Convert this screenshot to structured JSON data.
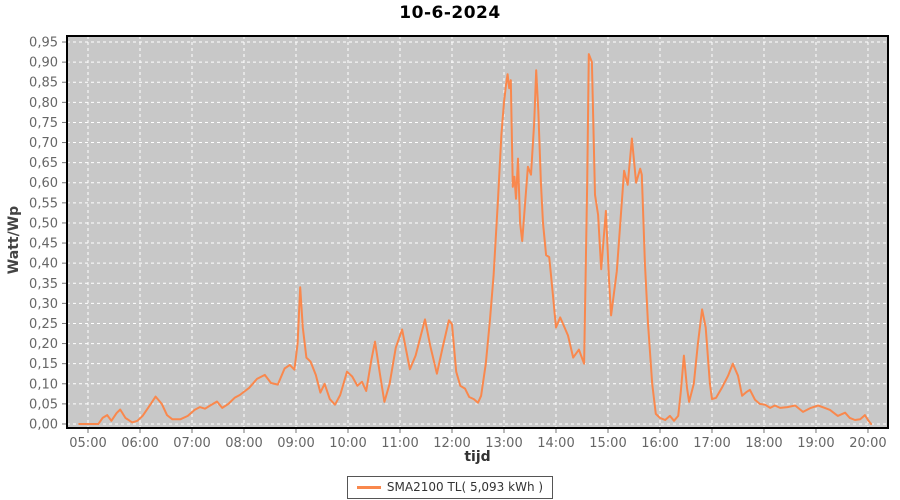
{
  "title": "10-6-2024",
  "legend": {
    "label": "SMA2100 TL( 5,093 kWh )",
    "swatch_color": "#f9884d"
  },
  "chart_data": {
    "type": "line",
    "title": "10-6-2024",
    "xlabel": "tijd",
    "ylabel": "Watt/Wp",
    "xlim": [
      4.596,
      20.385
    ],
    "ylim": [
      -0.01,
      0.965
    ],
    "grid": "on",
    "legend_position": "bottom-center",
    "colors": {
      "plot_background": "#c8c8c8",
      "grid_line": "#ffffff",
      "plot_border": "#000000",
      "tick_label": "#666666",
      "tick_mark": "#777777",
      "series_line": "#f9884d"
    },
    "x_tick_values": [
      5,
      6,
      7,
      8,
      9,
      10,
      11,
      12,
      13,
      14,
      15,
      16,
      17,
      18,
      19,
      20
    ],
    "x_tick_labels": [
      "05:00",
      "06:00",
      "07:00",
      "08:00",
      "09:00",
      "10:00",
      "11:00",
      "12:00",
      "13:00",
      "14:00",
      "15:00",
      "16:00",
      "17:00",
      "18:00",
      "19:00",
      "20:00"
    ],
    "y_tick_values": [
      0,
      0.05,
      0.1,
      0.15,
      0.2,
      0.25,
      0.3,
      0.35,
      0.4,
      0.45,
      0.5,
      0.55,
      0.6,
      0.65,
      0.7,
      0.75,
      0.8,
      0.85,
      0.9,
      0.95
    ],
    "y_tick_labels": [
      "0,00",
      "0,05",
      "0,10",
      "0,15",
      "0,20",
      "0,25",
      "0,30",
      "0,35",
      "0,40",
      "0,45",
      "0,50",
      "0,55",
      "0,60",
      "0,65",
      "0,70",
      "0,75",
      "0,80",
      "0,85",
      "0,90",
      "0,95"
    ],
    "series": [
      {
        "name": "SMA2100 TL( 5,093 kWh )",
        "color": "#f9884d",
        "points": [
          [
            4.83,
            0
          ],
          [
            5.0,
            0
          ],
          [
            5.2,
            0
          ],
          [
            5.28,
            0.015
          ],
          [
            5.37,
            0.022
          ],
          [
            5.45,
            0.008
          ],
          [
            5.55,
            0.027
          ],
          [
            5.62,
            0.036
          ],
          [
            5.72,
            0.015
          ],
          [
            5.85,
            0.004
          ],
          [
            5.95,
            0.008
          ],
          [
            6.05,
            0.02
          ],
          [
            6.18,
            0.045
          ],
          [
            6.3,
            0.068
          ],
          [
            6.42,
            0.05
          ],
          [
            6.52,
            0.022
          ],
          [
            6.62,
            0.012
          ],
          [
            6.78,
            0.012
          ],
          [
            6.92,
            0.02
          ],
          [
            7.05,
            0.035
          ],
          [
            7.15,
            0.042
          ],
          [
            7.25,
            0.038
          ],
          [
            7.35,
            0.046
          ],
          [
            7.48,
            0.056
          ],
          [
            7.58,
            0.04
          ],
          [
            7.7,
            0.05
          ],
          [
            7.82,
            0.065
          ],
          [
            7.92,
            0.072
          ],
          [
            8.1,
            0.09
          ],
          [
            8.25,
            0.112
          ],
          [
            8.4,
            0.122
          ],
          [
            8.52,
            0.102
          ],
          [
            8.65,
            0.098
          ],
          [
            8.78,
            0.138
          ],
          [
            8.88,
            0.147
          ],
          [
            8.97,
            0.135
          ],
          [
            9.03,
            0.2
          ],
          [
            9.08,
            0.34
          ],
          [
            9.13,
            0.24
          ],
          [
            9.2,
            0.165
          ],
          [
            9.28,
            0.155
          ],
          [
            9.38,
            0.122
          ],
          [
            9.47,
            0.078
          ],
          [
            9.55,
            0.1
          ],
          [
            9.65,
            0.062
          ],
          [
            9.75,
            0.048
          ],
          [
            9.85,
            0.072
          ],
          [
            9.98,
            0.13
          ],
          [
            10.08,
            0.118
          ],
          [
            10.18,
            0.095
          ],
          [
            10.27,
            0.105
          ],
          [
            10.35,
            0.082
          ],
          [
            10.45,
            0.16
          ],
          [
            10.52,
            0.205
          ],
          [
            10.62,
            0.12
          ],
          [
            10.7,
            0.055
          ],
          [
            10.8,
            0.1
          ],
          [
            10.92,
            0.19
          ],
          [
            11.04,
            0.235
          ],
          [
            11.19,
            0.136
          ],
          [
            11.3,
            0.17
          ],
          [
            11.48,
            0.26
          ],
          [
            11.58,
            0.195
          ],
          [
            11.71,
            0.125
          ],
          [
            11.82,
            0.19
          ],
          [
            11.94,
            0.258
          ],
          [
            12.0,
            0.248
          ],
          [
            12.08,
            0.13
          ],
          [
            12.16,
            0.095
          ],
          [
            12.25,
            0.088
          ],
          [
            12.33,
            0.067
          ],
          [
            12.42,
            0.062
          ],
          [
            12.5,
            0.053
          ],
          [
            12.56,
            0.07
          ],
          [
            12.65,
            0.15
          ],
          [
            12.73,
            0.26
          ],
          [
            12.8,
            0.37
          ],
          [
            12.88,
            0.55
          ],
          [
            12.95,
            0.72
          ],
          [
            13.0,
            0.8
          ],
          [
            13.04,
            0.845
          ],
          [
            13.07,
            0.87
          ],
          [
            13.1,
            0.835
          ],
          [
            13.13,
            0.855
          ],
          [
            13.17,
            0.59
          ],
          [
            13.2,
            0.615
          ],
          [
            13.23,
            0.56
          ],
          [
            13.27,
            0.66
          ],
          [
            13.31,
            0.5
          ],
          [
            13.35,
            0.455
          ],
          [
            13.46,
            0.64
          ],
          [
            13.52,
            0.62
          ],
          [
            13.58,
            0.75
          ],
          [
            13.62,
            0.88
          ],
          [
            13.66,
            0.78
          ],
          [
            13.71,
            0.6
          ],
          [
            13.75,
            0.5
          ],
          [
            13.81,
            0.42
          ],
          [
            13.87,
            0.415
          ],
          [
            13.92,
            0.35
          ],
          [
            14.0,
            0.24
          ],
          [
            14.08,
            0.265
          ],
          [
            14.23,
            0.22
          ],
          [
            14.33,
            0.165
          ],
          [
            14.44,
            0.185
          ],
          [
            14.54,
            0.15
          ],
          [
            14.6,
            0.6
          ],
          [
            14.63,
            0.92
          ],
          [
            14.69,
            0.9
          ],
          [
            14.75,
            0.57
          ],
          [
            14.81,
            0.52
          ],
          [
            14.87,
            0.385
          ],
          [
            14.96,
            0.53
          ],
          [
            15.02,
            0.36
          ],
          [
            15.06,
            0.27
          ],
          [
            15.17,
            0.38
          ],
          [
            15.31,
            0.63
          ],
          [
            15.38,
            0.595
          ],
          [
            15.46,
            0.71
          ],
          [
            15.54,
            0.6
          ],
          [
            15.62,
            0.635
          ],
          [
            15.65,
            0.62
          ],
          [
            15.71,
            0.4
          ],
          [
            15.77,
            0.25
          ],
          [
            15.85,
            0.1
          ],
          [
            15.92,
            0.025
          ],
          [
            16.0,
            0.015
          ],
          [
            16.1,
            0.01
          ],
          [
            16.19,
            0.02
          ],
          [
            16.27,
            0.008
          ],
          [
            16.35,
            0.02
          ],
          [
            16.4,
            0.08
          ],
          [
            16.46,
            0.17
          ],
          [
            16.52,
            0.09
          ],
          [
            16.56,
            0.055
          ],
          [
            16.65,
            0.1
          ],
          [
            16.73,
            0.2
          ],
          [
            16.81,
            0.285
          ],
          [
            16.88,
            0.24
          ],
          [
            16.96,
            0.1
          ],
          [
            17.0,
            0.062
          ],
          [
            17.08,
            0.065
          ],
          [
            17.19,
            0.09
          ],
          [
            17.31,
            0.12
          ],
          [
            17.4,
            0.15
          ],
          [
            17.5,
            0.12
          ],
          [
            17.58,
            0.07
          ],
          [
            17.67,
            0.08
          ],
          [
            17.73,
            0.085
          ],
          [
            17.83,
            0.06
          ],
          [
            17.92,
            0.05
          ],
          [
            18.02,
            0.048
          ],
          [
            18.12,
            0.04
          ],
          [
            18.21,
            0.046
          ],
          [
            18.31,
            0.04
          ],
          [
            18.45,
            0.042
          ],
          [
            18.6,
            0.046
          ],
          [
            18.75,
            0.03
          ],
          [
            18.9,
            0.04
          ],
          [
            19.04,
            0.046
          ],
          [
            19.17,
            0.04
          ],
          [
            19.27,
            0.035
          ],
          [
            19.42,
            0.02
          ],
          [
            19.56,
            0.028
          ],
          [
            19.65,
            0.015
          ],
          [
            19.75,
            0.01
          ],
          [
            19.85,
            0.012
          ],
          [
            19.94,
            0.022
          ],
          [
            20.0,
            0.01
          ],
          [
            20.06,
            0
          ]
        ]
      }
    ]
  }
}
